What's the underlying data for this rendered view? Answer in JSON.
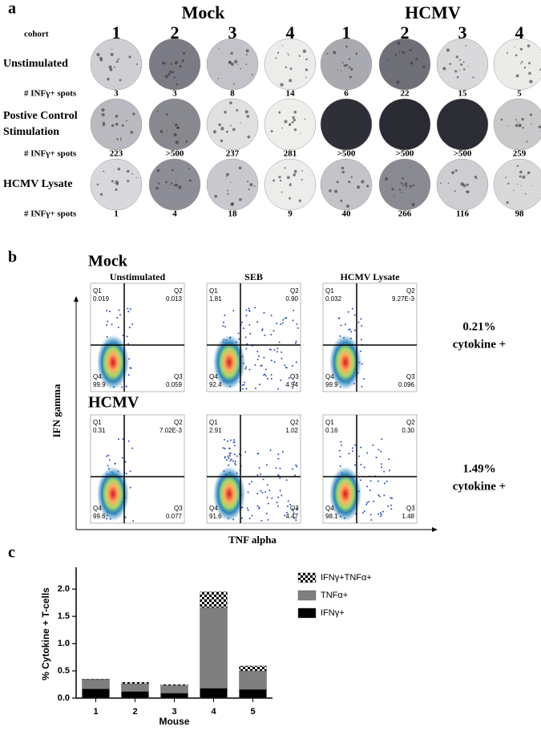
{
  "panel_a": {
    "label": "a",
    "cohort_label": "cohort",
    "cohorts": [
      "1",
      "2",
      "3",
      "4"
    ],
    "row_labels": [
      [
        "Unstimulated"
      ],
      [
        "Postive Control",
        "Stimulation"
      ],
      [
        "HCMV Lysate"
      ]
    ],
    "count_label": "# INFγ+ spots",
    "groups": [
      {
        "title": "Mock",
        "rows": [
          [
            3,
            3,
            8,
            14
          ],
          [
            223,
            ">500",
            237,
            281
          ],
          [
            1,
            4,
            18,
            9
          ]
        ]
      },
      {
        "title": "HCMV",
        "rows": [
          [
            6,
            22,
            15,
            5
          ],
          [
            ">500",
            ">500",
            ">500",
            259
          ],
          [
            40,
            266,
            116,
            98
          ]
        ]
      }
    ]
  },
  "panel_b": {
    "label": "b",
    "columns": [
      "Unstimulated",
      "SEB",
      "HCMV Lysate"
    ],
    "y_axis": "IFN gamma",
    "x_axis": "TNF alpha",
    "rows": [
      {
        "title": "Mock",
        "summary": [
          "0.21%",
          "cytokine +"
        ],
        "plots": [
          [
            [
              "Q1",
              "0.019"
            ],
            [
              "Q2",
              "0.013"
            ],
            [
              "Q3",
              "0.059"
            ],
            [
              "Q4",
              "99.9"
            ]
          ],
          [
            [
              "Q1",
              "1.81"
            ],
            [
              "Q2",
              "0.90"
            ],
            [
              "Q3",
              "4.94"
            ],
            [
              "Q4",
              "92.4"
            ]
          ],
          [
            [
              "Q1",
              "0.032"
            ],
            [
              "Q2",
              "9.27E-3"
            ],
            [
              "Q3",
              "0.096"
            ],
            [
              "Q4",
              "99.9"
            ]
          ]
        ]
      },
      {
        "title": "HCMV",
        "summary": [
          "1.49%",
          "cytokine +"
        ],
        "plots": [
          [
            [
              "Q1",
              "0.31"
            ],
            [
              "Q2",
              "7.02E-3"
            ],
            [
              "Q3",
              "0.077"
            ],
            [
              "Q4",
              "99.6"
            ]
          ],
          [
            [
              "Q1",
              "2.91"
            ],
            [
              "Q2",
              "1.02"
            ],
            [
              "Q3",
              "4.47"
            ],
            [
              "Q4",
              "91.6"
            ]
          ],
          [
            [
              "Q1",
              "0.16"
            ],
            [
              "Q2",
              "0.30"
            ],
            [
              "Q3",
              "1.48"
            ],
            [
              "Q4",
              "98.1"
            ]
          ]
        ]
      }
    ]
  },
  "chart_data": {
    "type": "bar",
    "stacked": true,
    "label": "c",
    "y_label": "% Cytokine + T-cells",
    "x_label": "Mouse",
    "categories": [
      "1",
      "2",
      "3",
      "4",
      "5"
    ],
    "series": [
      {
        "name": "IFNγ+",
        "color": "#000000",
        "values": [
          0.17,
          0.12,
          0.09,
          0.18,
          0.16
        ]
      },
      {
        "name": "TNFα+",
        "color": "#7f7f7f",
        "values": [
          0.17,
          0.14,
          0.14,
          1.48,
          0.34
        ]
      },
      {
        "name": "IFNγ+TNFα+",
        "color": "#000000",
        "pattern": "checkerboard",
        "values": [
          0.01,
          0.03,
          0.02,
          0.29,
          0.09
        ]
      }
    ],
    "ylim": [
      0,
      2.4
    ],
    "yticks": [
      {
        "value": 0,
        "label": "0.0"
      },
      {
        "value": 0.5,
        "label": "0.5"
      },
      {
        "value": 1,
        "label": "1.0"
      },
      {
        "value": 1.5,
        "label": "1.5"
      },
      {
        "value": 2,
        "label": "2.0"
      }
    ],
    "legend": "upper right"
  }
}
